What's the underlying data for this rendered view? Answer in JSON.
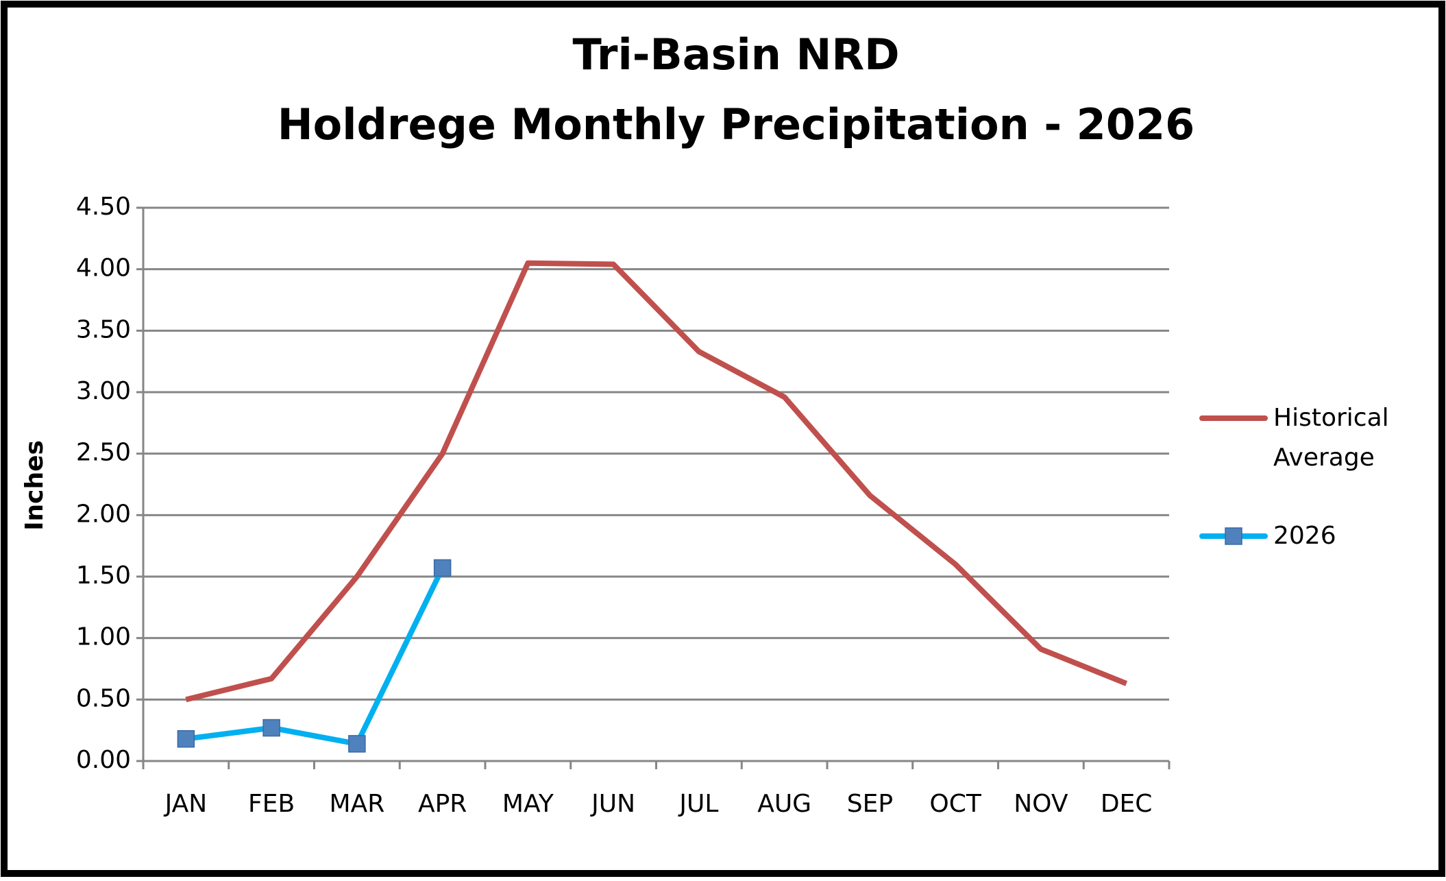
{
  "chart_data": {
    "type": "line",
    "title": "Tri-Basin NRD",
    "subtitle": "Holdrege Monthly Precipitation - 2026",
    "y_label": "Inches",
    "categories": [
      "JAN",
      "FEB",
      "MAR",
      "APR",
      "MAY",
      "JUN",
      "JUL",
      "AUG",
      "SEP",
      "OCT",
      "NOV",
      "DEC"
    ],
    "series": [
      {
        "name": "Historical Average",
        "color": "#c0504d",
        "values": [
          0.5,
          0.67,
          1.5,
          2.5,
          4.05,
          4.04,
          3.33,
          2.96,
          2.16,
          1.6,
          0.91,
          0.63
        ]
      },
      {
        "name": "2026",
        "color": "#00b0f0",
        "marker_color": "#4f81bd",
        "values": [
          0.18,
          0.27,
          0.14,
          1.57,
          null,
          null,
          null,
          null,
          null,
          null,
          null,
          null
        ]
      }
    ],
    "ylim": [
      0,
      4.5
    ],
    "yticks": [
      {
        "value": 0,
        "label": "0.00"
      },
      {
        "value": 0.5,
        "label": "0.50"
      },
      {
        "value": 1,
        "label": "1.00"
      },
      {
        "value": 1.5,
        "label": "1.50"
      },
      {
        "value": 2,
        "label": "2.00"
      },
      {
        "value": 2.5,
        "label": "2.50"
      },
      {
        "value": 3,
        "label": "3.00"
      },
      {
        "value": 3.5,
        "label": "3.50"
      },
      {
        "value": 4,
        "label": "4.00"
      },
      {
        "value": 4.5,
        "label": "4.50"
      }
    ],
    "grid": true,
    "legend": "right"
  }
}
